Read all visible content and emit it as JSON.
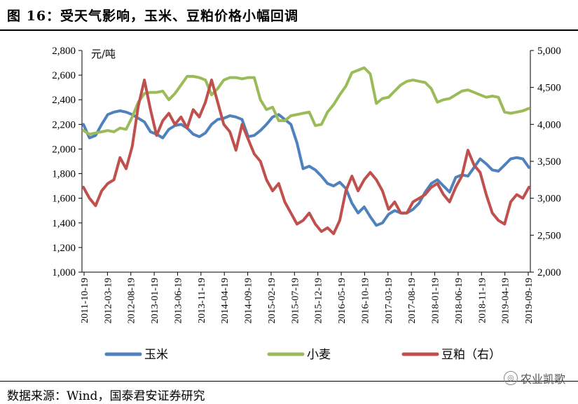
{
  "header": {
    "title": "图 16：受天气影响，玉米、豆粕价格小幅回调"
  },
  "footer": {
    "source": "数据来源：Wind，国泰君安证券研究",
    "watermark": "农业凯歌"
  },
  "colors": {
    "corn": "#4F81BD",
    "wheat": "#9BBB59",
    "soymeal": "#C0504D"
  },
  "chart_data": {
    "type": "line",
    "unit_label": "元/吨",
    "x_ticks": [
      "2011-10-19",
      "2012-03-19",
      "2012-08-19",
      "2013-01-19",
      "2013-06-19",
      "2013-11-19",
      "2014-04-19",
      "2014-09-19",
      "2015-02-19",
      "2015-07-19",
      "2015-12-19",
      "2016-05-19",
      "2016-10-19",
      "2017-03-19",
      "2017-08-19",
      "2018-01-19",
      "2018-06-19",
      "2018-11-19",
      "2019-04-19",
      "2019-09-19"
    ],
    "y_left": {
      "min": 1000,
      "max": 2800,
      "ticks": [
        "1,000",
        "1,200",
        "1,400",
        "1,600",
        "1,800",
        "2,000",
        "2,200",
        "2,400",
        "2,600",
        "2,800"
      ]
    },
    "y_right": {
      "min": 2000,
      "max": 5000,
      "ticks": [
        "2,000",
        "2,500",
        "3,000",
        "3,500",
        "4,000",
        "4,500",
        "5,000"
      ]
    },
    "legend": [
      "玉米",
      "小麦",
      "豆粕（右）"
    ],
    "series": [
      {
        "name": "玉米",
        "axis": "left",
        "color": "#4F81BD",
        "values": [
          2200,
          2090,
          2110,
          2200,
          2280,
          2300,
          2310,
          2300,
          2280,
          2250,
          2220,
          2140,
          2120,
          2090,
          2160,
          2190,
          2200,
          2170,
          2120,
          2100,
          2130,
          2200,
          2240,
          2250,
          2270,
          2260,
          2240,
          2100,
          2110,
          2150,
          2200,
          2260,
          2280,
          2240,
          2200,
          2050,
          1840,
          1860,
          1830,
          1780,
          1720,
          1700,
          1730,
          1680,
          1560,
          1480,
          1530,
          1450,
          1380,
          1400,
          1470,
          1500,
          1480,
          1480,
          1510,
          1560,
          1650,
          1720,
          1750,
          1700,
          1650,
          1770,
          1790,
          1780,
          1850,
          1920,
          1880,
          1830,
          1820,
          1870,
          1920,
          1930,
          1920,
          1850
        ]
      },
      {
        "name": "小麦",
        "axis": "left",
        "color": "#9BBB59",
        "values": [
          2150,
          2120,
          2130,
          2140,
          2150,
          2140,
          2170,
          2160,
          2260,
          2380,
          2450,
          2460,
          2460,
          2470,
          2400,
          2450,
          2520,
          2590,
          2590,
          2580,
          2560,
          2440,
          2490,
          2560,
          2580,
          2580,
          2570,
          2580,
          2580,
          2400,
          2320,
          2340,
          2230,
          2230,
          2270,
          2280,
          2290,
          2300,
          2190,
          2200,
          2300,
          2360,
          2440,
          2510,
          2620,
          2640,
          2660,
          2610,
          2370,
          2410,
          2420,
          2470,
          2520,
          2550,
          2560,
          2550,
          2540,
          2490,
          2380,
          2400,
          2410,
          2440,
          2470,
          2480,
          2460,
          2440,
          2420,
          2430,
          2420,
          2300,
          2290,
          2300,
          2310,
          2330
        ]
      },
      {
        "name": "豆粕（右）",
        "axis": "right",
        "color": "#C0504D",
        "values": [
          3150,
          3000,
          2900,
          3100,
          3200,
          3250,
          3550,
          3400,
          3700,
          4250,
          4600,
          4200,
          3850,
          4050,
          4150,
          4000,
          4100,
          3950,
          4200,
          4100,
          4300,
          4600,
          4300,
          4000,
          3900,
          3650,
          4000,
          3800,
          3600,
          3500,
          3250,
          3100,
          3200,
          2950,
          2800,
          2650,
          2700,
          2800,
          2650,
          2550,
          2600,
          2520,
          2700,
          3100,
          3300,
          3100,
          3250,
          3350,
          3250,
          3100,
          2850,
          2950,
          2800,
          2800,
          2950,
          3000,
          3050,
          3150,
          3200,
          3050,
          2950,
          3150,
          3300,
          3650,
          3450,
          3350,
          3050,
          2800,
          2700,
          2650,
          2950,
          3050,
          3000,
          3150
        ]
      }
    ]
  }
}
